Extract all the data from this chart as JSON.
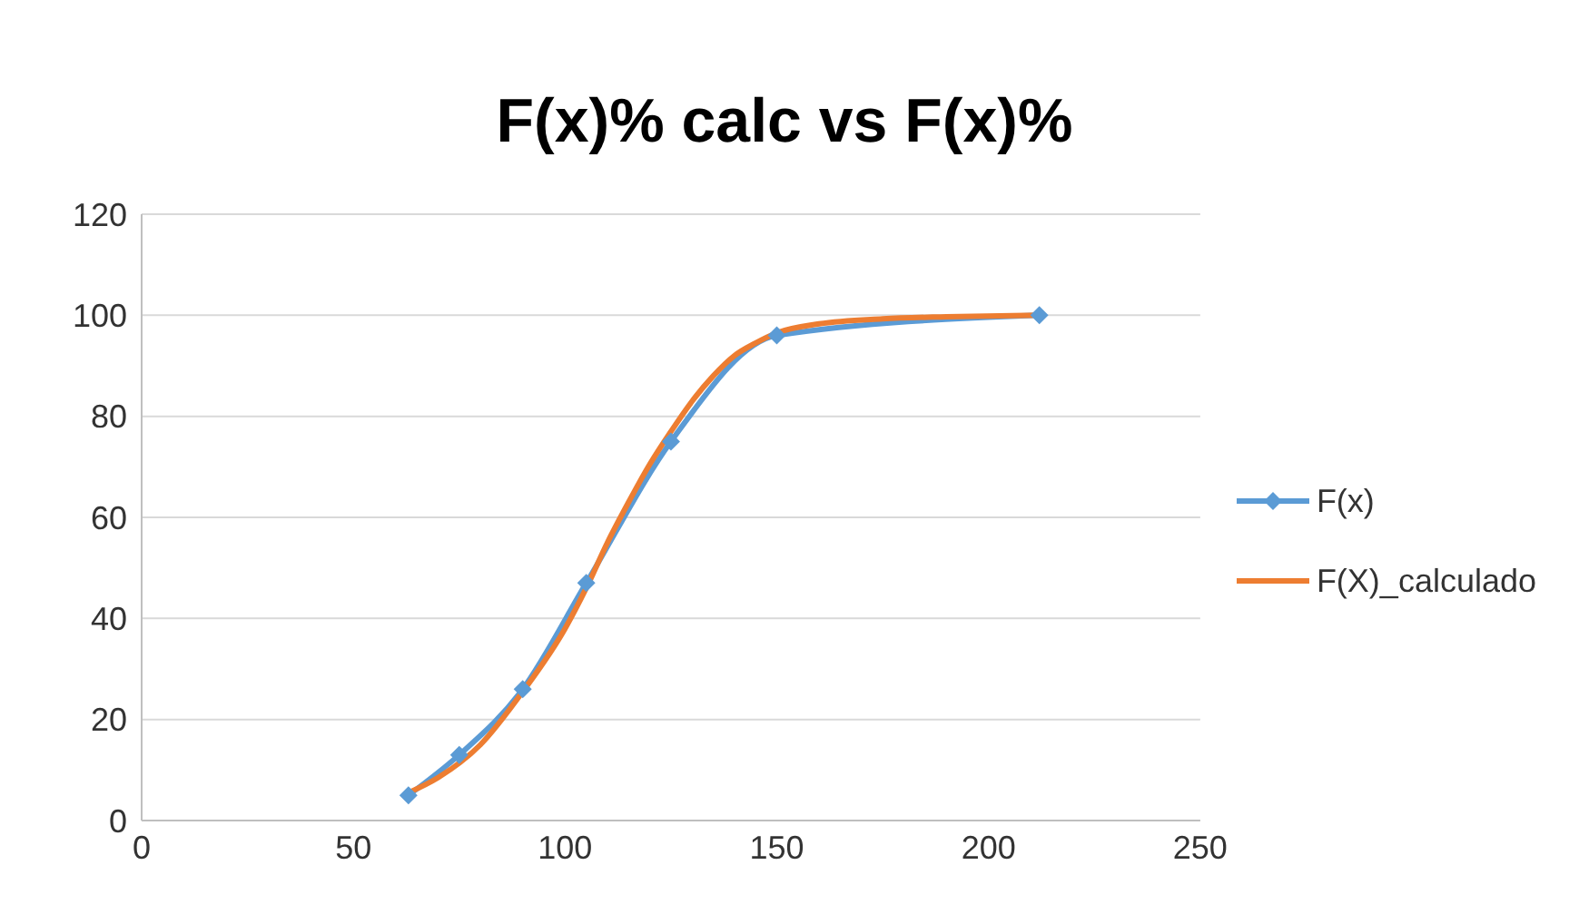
{
  "chart_data": {
    "type": "line",
    "title": "F(x)% calc vs F(x)%",
    "xlim": [
      0,
      250
    ],
    "xticks": [
      0,
      50,
      100,
      150,
      200,
      250
    ],
    "ylim": [
      0,
      120
    ],
    "yticks": [
      0,
      20,
      40,
      60,
      80,
      100,
      120
    ],
    "grid": "y",
    "legend": "right",
    "series": [
      {
        "name": "F(x)",
        "color": "#5b9bd5",
        "marker": "diamond",
        "x": [
          63,
          75,
          90,
          105,
          125,
          150,
          212
        ],
        "values": [
          5,
          13,
          26,
          47,
          75,
          96,
          100
        ]
      },
      {
        "name": "F(X)_calculado",
        "color": "#ed7d31",
        "marker": "none",
        "x": [
          63,
          70,
          80,
          90,
          100,
          105,
          110,
          115,
          120,
          125,
          130,
          135,
          140,
          145,
          150,
          160,
          175,
          190,
          212
        ],
        "values": [
          5.5,
          8.5,
          15,
          25.5,
          38,
          46,
          55,
          63,
          70.5,
          77,
          83,
          88,
          92,
          94.5,
          96.5,
          98.3,
          99.3,
          99.7,
          100
        ]
      }
    ]
  }
}
